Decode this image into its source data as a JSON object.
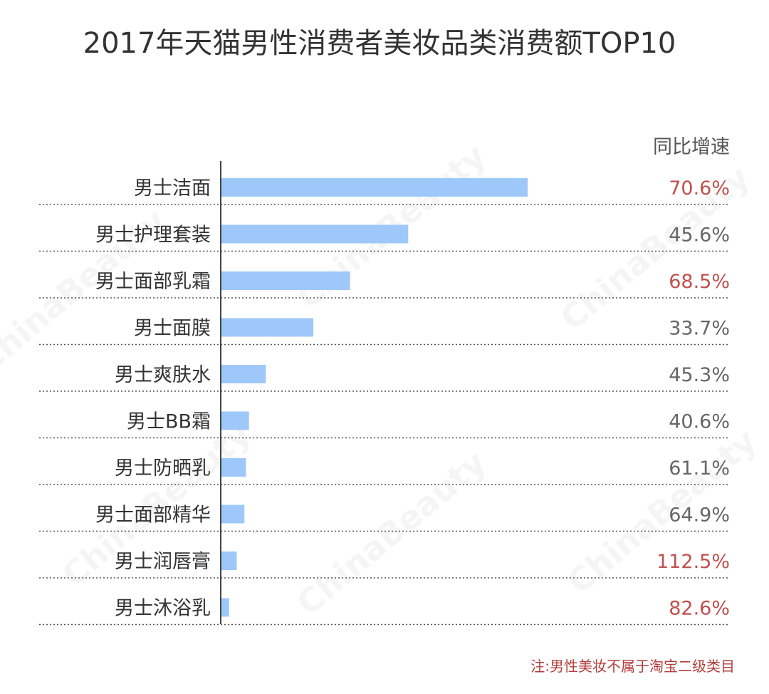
{
  "colors": {
    "bar": "#9ec8fa",
    "growth_highlight": "#c0504d",
    "growth_normal": "#666666",
    "axis": "#444444",
    "divider": "#555555"
  },
  "watermark": "ChinaBeauty",
  "chart_data": {
    "type": "bar",
    "orientation": "horizontal",
    "title": "2017年天猫男性消费者美妆品类消费额TOP10",
    "growth_header": "同比增速",
    "note": "注:男性美妆不属于淘宝二级类目",
    "categories": [
      "男士洁面",
      "男士护理套装",
      "男士面部乳霜",
      "男士面膜",
      "男士爽肤水",
      "男士BB霜",
      "男士防晒乳",
      "男士面部精华",
      "男士润唇膏",
      "男士沐浴乳"
    ],
    "values": [
      100,
      61,
      42,
      30,
      14.5,
      9,
      8,
      7.5,
      5,
      2.5
    ],
    "value_axis_max": 100,
    "growth_labels": [
      "70.6%",
      "45.6%",
      "68.5%",
      "33.7%",
      "45.3%",
      "40.6%",
      "61.1%",
      "64.9%",
      "112.5%",
      "82.6%"
    ],
    "growth_highlight": [
      true,
      false,
      true,
      false,
      false,
      false,
      false,
      false,
      true,
      true
    ],
    "grid": false,
    "legend": "none"
  }
}
